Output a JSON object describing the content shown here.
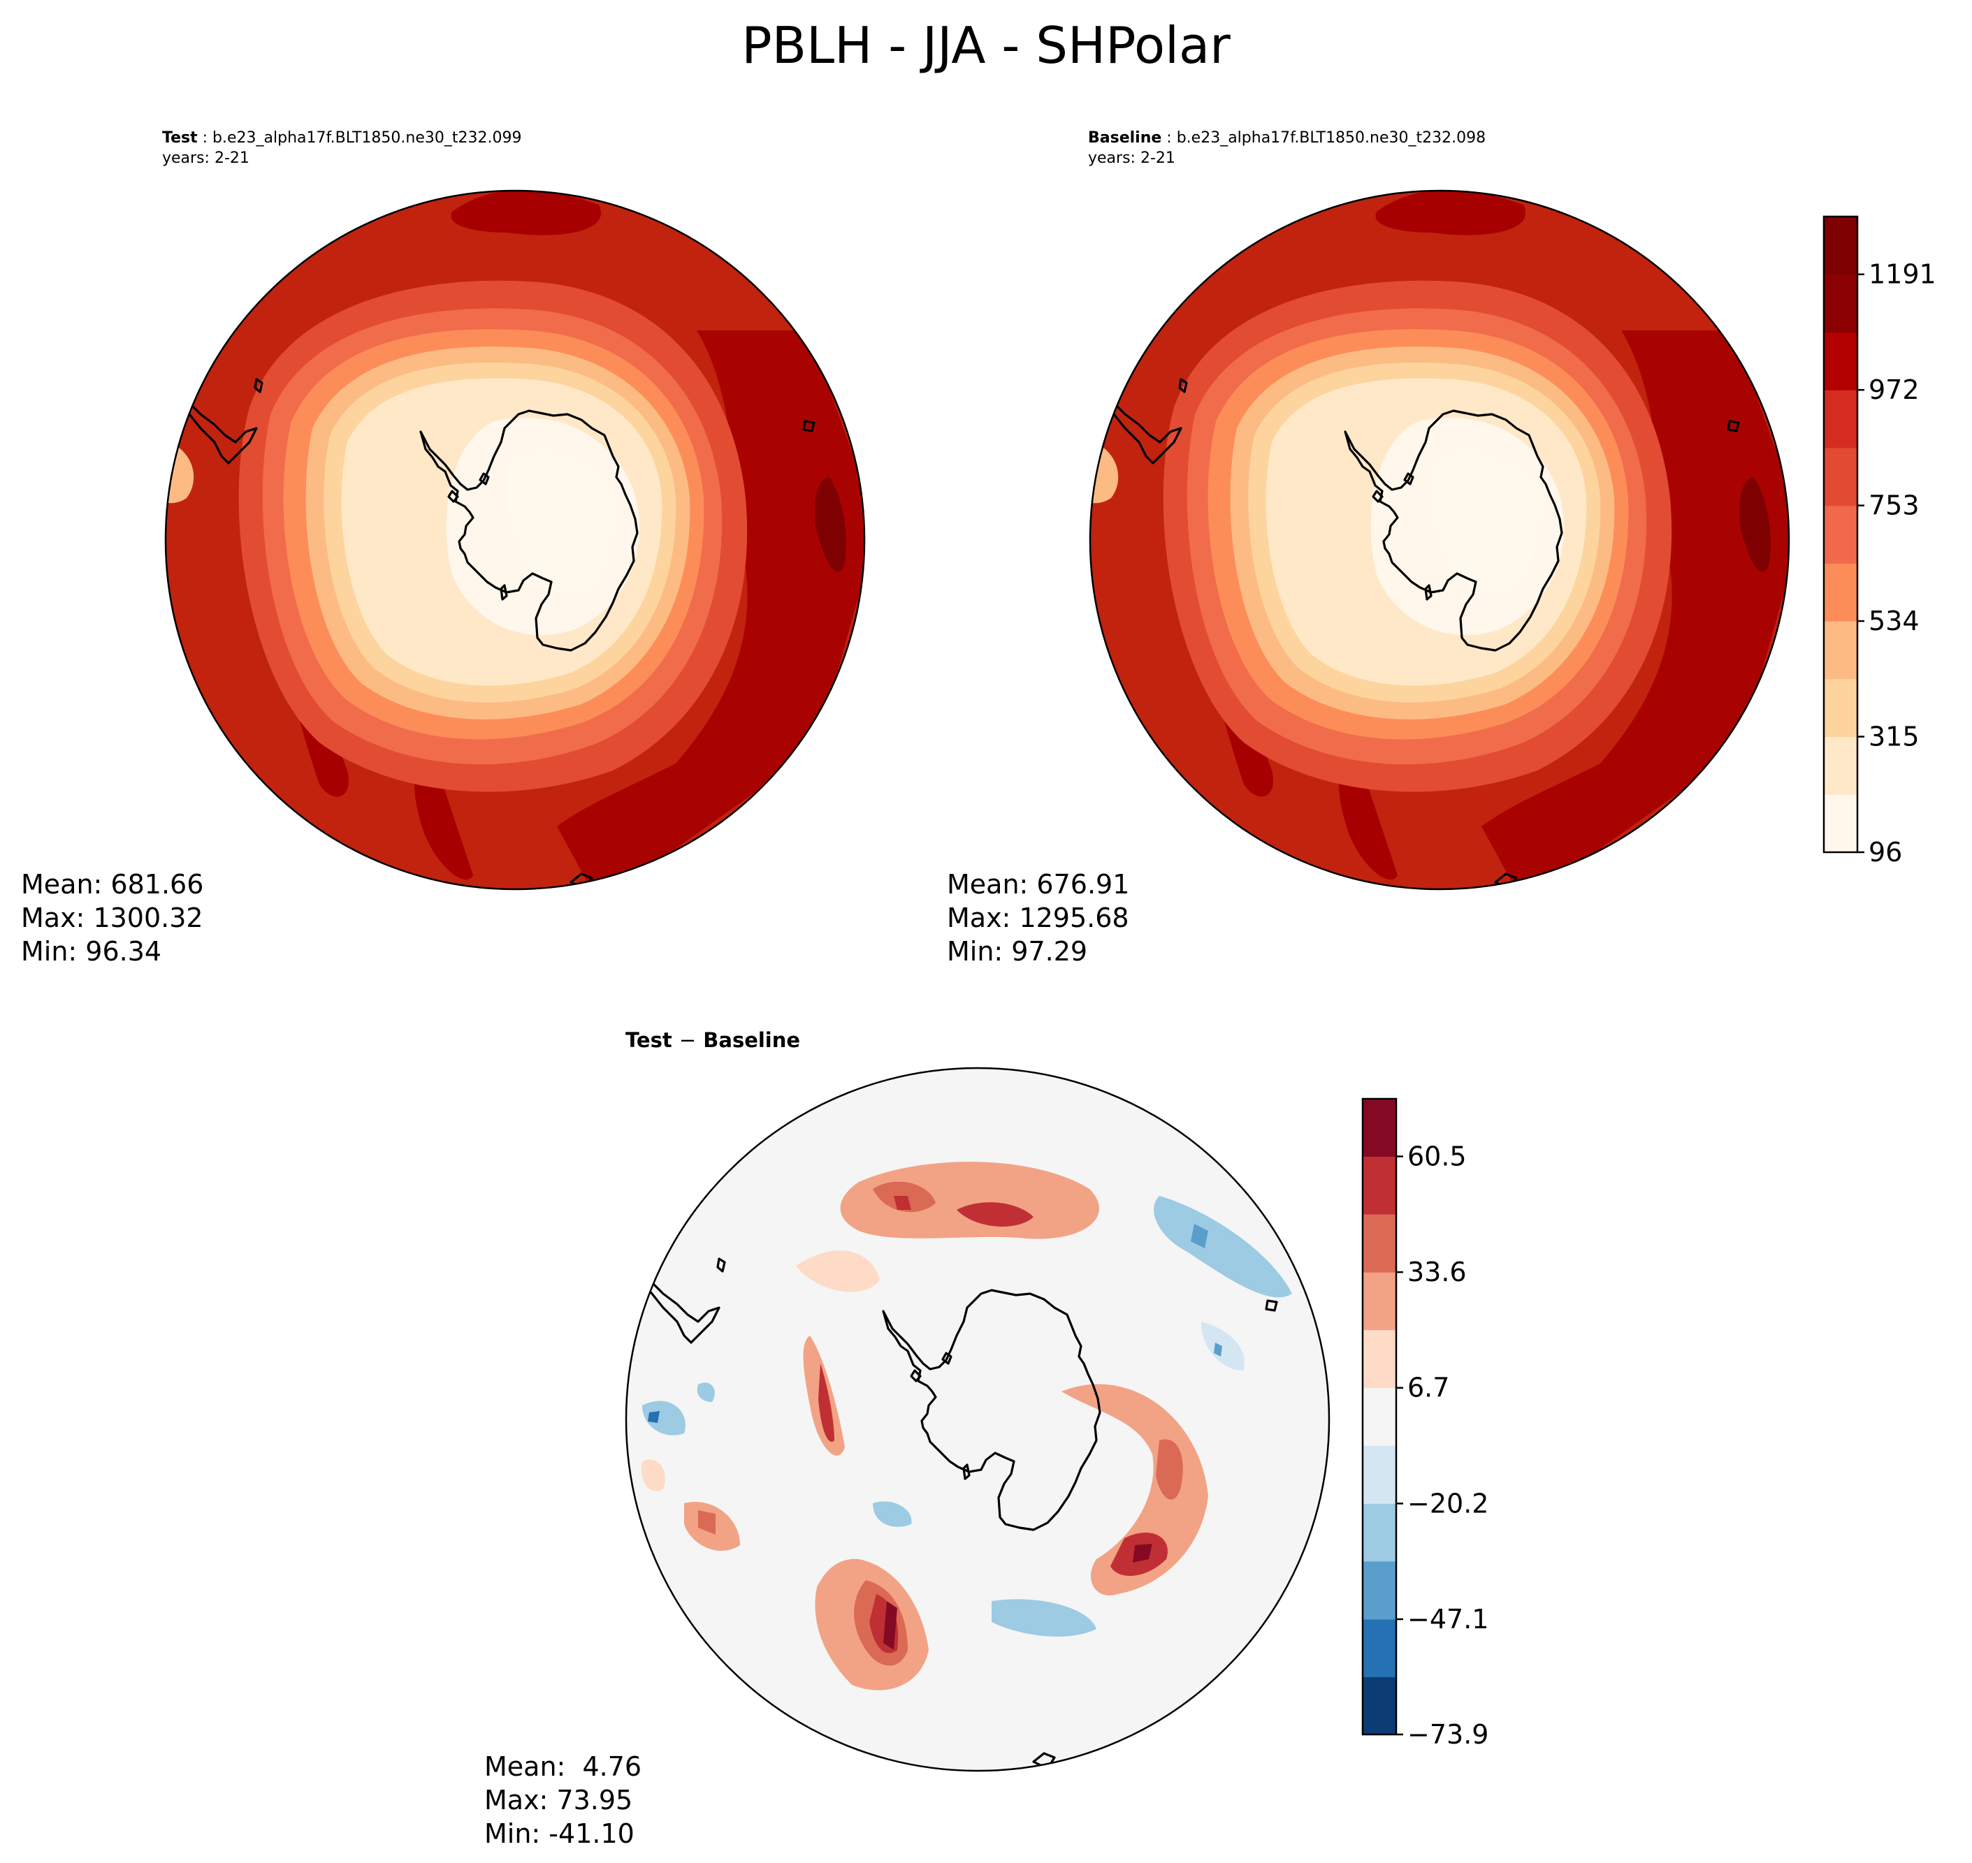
{
  "title": "PBLH - JJA - SHPolar",
  "panels": {
    "test": {
      "label_key": "Test",
      "case": "b.e23_alpha17f.BLT1850.ne30_t232.099",
      "years": "years: 2-21",
      "stats": {
        "mean": "Mean: 681.66",
        "max": "Max: 1300.32",
        "min": "Min: 96.34"
      }
    },
    "baseline": {
      "label_key": "Baseline",
      "case": "b.e23_alpha17f.BLT1850.ne30_t232.098",
      "years": "years: 2-21",
      "stats": {
        "mean": "Mean: 676.91",
        "max": "Max: 1295.68",
        "min": "Min: 97.29"
      }
    },
    "diff": {
      "label_a": "Test",
      "minus": "−",
      "label_b": "Baseline",
      "stats": {
        "mean": "Mean:  4.76",
        "max": "Max: 73.95",
        "min": "Min: -41.10"
      }
    }
  },
  "chart_data": [
    {
      "type": "heatmap",
      "name": "Test PBLH JJA SH polar",
      "projection": "south-polar-stereographic",
      "colormap": "OrRd",
      "colorbar": {
        "levels": [
          96,
          205.5,
          315,
          424.5,
          534,
          643.5,
          753,
          862.5,
          972,
          1081.5,
          1191,
          1300.5
        ],
        "tick_labels": [
          "96",
          "315",
          "534",
          "753",
          "972",
          "1191"
        ],
        "colors": [
          "#fff7ec",
          "#fee8c8",
          "#fdd49e",
          "#fdbb84",
          "#fc8d59",
          "#f1694a",
          "#e34a33",
          "#d42d1f",
          "#b30000",
          "#8b0000",
          "#7f0000"
        ]
      },
      "mean": 681.66,
      "max": 1300.32,
      "min": 96.34
    },
    {
      "type": "heatmap",
      "name": "Baseline PBLH JJA SH polar",
      "projection": "south-polar-stereographic",
      "colormap": "OrRd",
      "mean": 676.91,
      "max": 1295.68,
      "min": 97.29
    },
    {
      "type": "heatmap",
      "name": "Test - Baseline difference",
      "projection": "south-polar-stereographic",
      "colormap": "RdBu_r",
      "colorbar": {
        "levels": [
          -73.9,
          -60.5,
          -47.1,
          -33.6,
          -20.2,
          -6.7,
          6.7,
          20.2,
          33.6,
          47.1,
          60.5,
          73.9
        ],
        "tick_labels": [
          "−73.9",
          "−47.1",
          "−20.2",
          "6.7",
          "33.6",
          "60.5"
        ],
        "colors": [
          "#0b3c73",
          "#2471b3",
          "#5a9ecc",
          "#9ccbe3",
          "#d3e6f1",
          "#f5f5f5",
          "#fddbc7",
          "#f2a385",
          "#db6a55",
          "#c02f34",
          "#840a24"
        ]
      },
      "mean": 4.76,
      "max": 73.95,
      "min": -41.1
    }
  ]
}
